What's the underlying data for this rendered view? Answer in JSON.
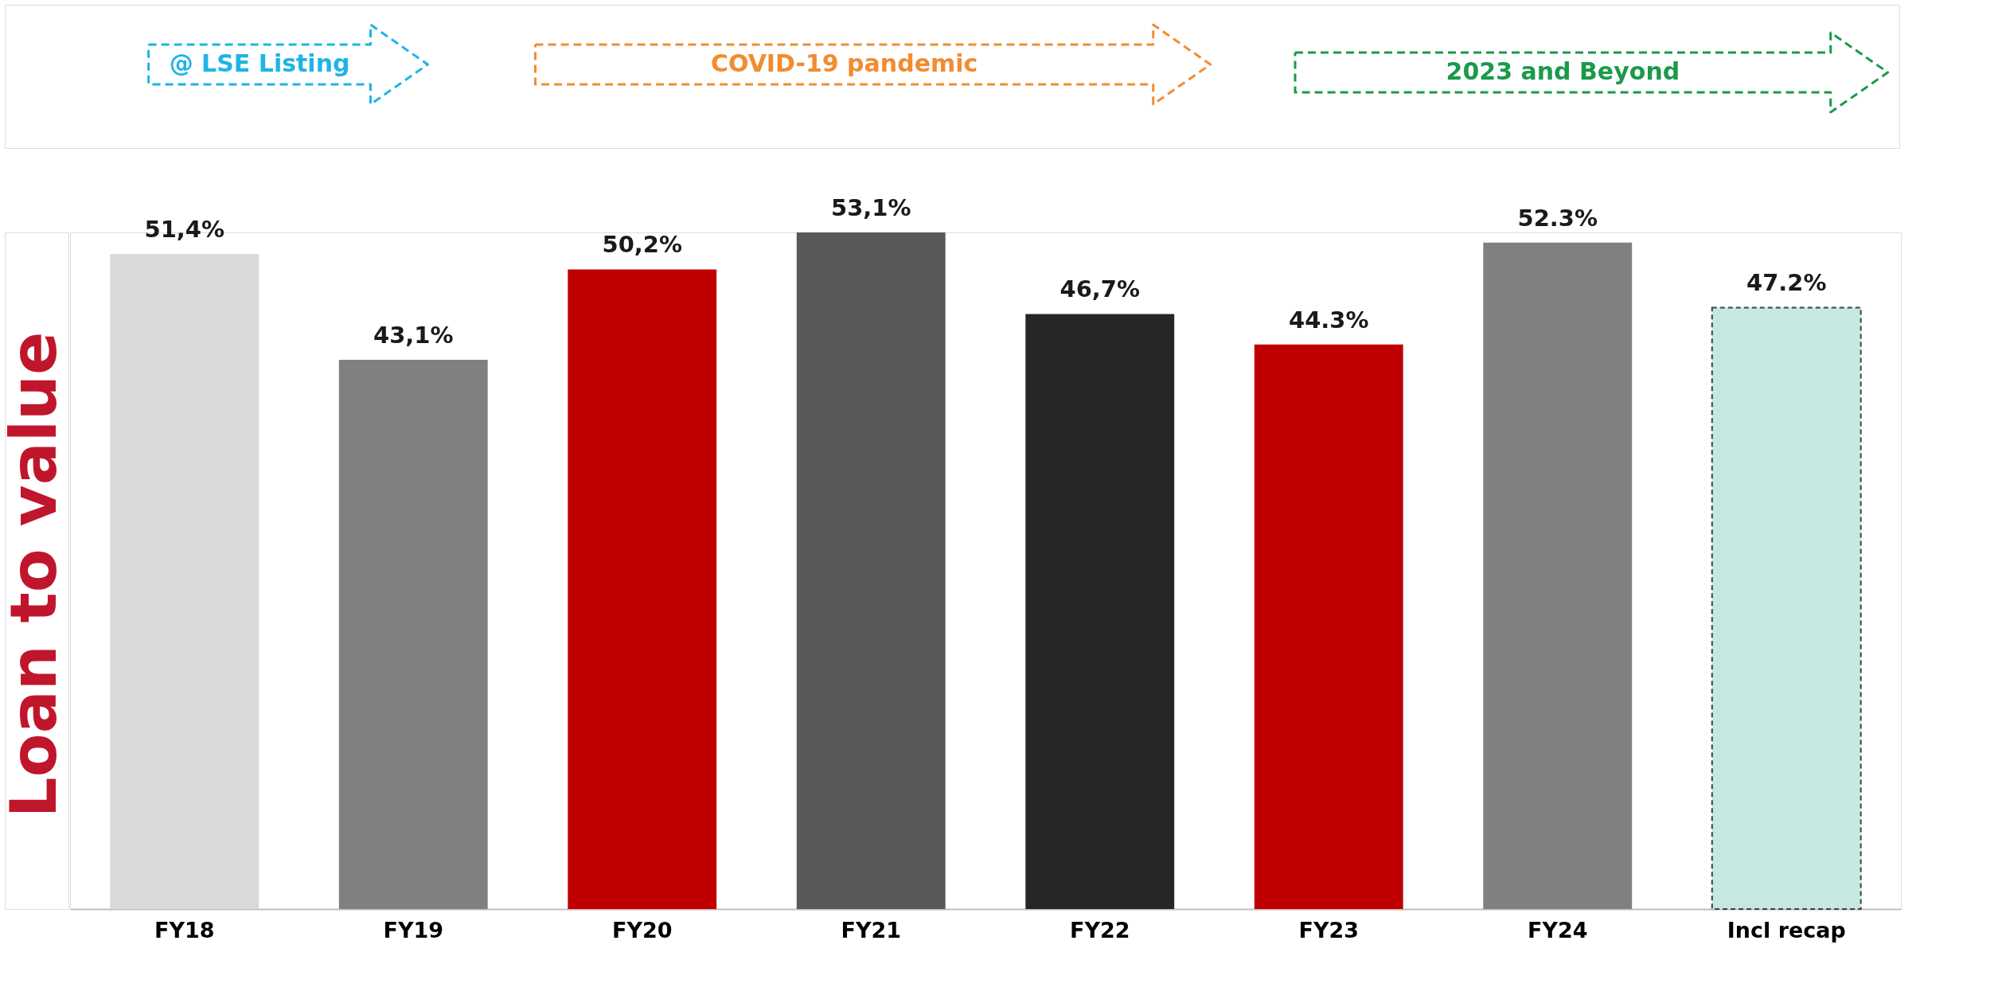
{
  "chart_data": {
    "type": "bar",
    "ylabel": "Loan to value",
    "categories": [
      "FY18",
      "FY19",
      "FY20",
      "FY21",
      "FY22",
      "FY23",
      "FY24",
      "Incl recap"
    ],
    "values": [
      51.4,
      43.1,
      50.2,
      53.1,
      46.7,
      44.3,
      52.3,
      47.2
    ],
    "value_labels": [
      "51,4%",
      "43,1%",
      "50,2%",
      "53,1%",
      "46,7%",
      "44.3%",
      "52.3%",
      "47.2%"
    ],
    "colors": [
      "#d9d9d9",
      "#808080",
      "#c00000",
      "#595959",
      "#262626",
      "#c00000",
      "#808080",
      "#c5e8e2"
    ],
    "annotations": [
      "@ LSE Listing",
      "COVID-19 pandemic",
      "2023 and Beyond"
    ]
  }
}
